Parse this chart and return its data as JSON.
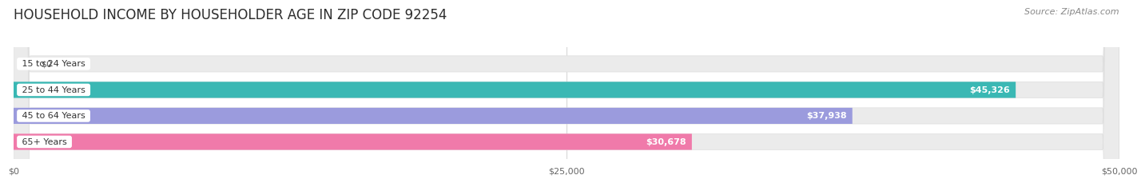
{
  "title": "HOUSEHOLD INCOME BY HOUSEHOLDER AGE IN ZIP CODE 92254",
  "source": "Source: ZipAtlas.com",
  "categories": [
    "15 to 24 Years",
    "25 to 44 Years",
    "45 to 64 Years",
    "65+ Years"
  ],
  "values": [
    0,
    45326,
    37938,
    30678
  ],
  "value_labels": [
    "$0",
    "$45,326",
    "$37,938",
    "$30,678"
  ],
  "bar_colors": [
    "#c9a8d4",
    "#3ab8b4",
    "#9b9bdd",
    "#f07aaa"
  ],
  "track_color": "#ebebeb",
  "track_edge_color": "#dedede",
  "max_value": 50000,
  "xtick_values": [
    0,
    25000,
    50000
  ],
  "xtick_labels": [
    "$0",
    "$25,000",
    "$50,000"
  ],
  "title_fontsize": 12,
  "source_fontsize": 8,
  "cat_fontsize": 8,
  "val_fontsize": 8,
  "bar_height": 0.62,
  "background_color": "#ffffff",
  "grid_color": "#d8d8d8",
  "text_color": "#333333",
  "val_label_color_inside": "#ffffff",
  "val_label_color_outside": "#555555"
}
